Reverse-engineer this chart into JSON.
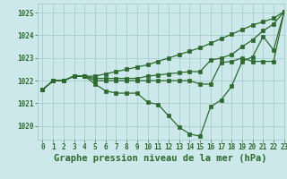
{
  "background_color": "#cde8ea",
  "grid_color": "#aacccc",
  "line_color": "#2d6a2d",
  "title": "Graphe pression niveau de la mer (hPa)",
  "xlim": [
    -0.5,
    23
  ],
  "ylim": [
    1019.4,
    1025.4
  ],
  "yticks": [
    1020,
    1021,
    1022,
    1023,
    1024,
    1025
  ],
  "xticks": [
    0,
    1,
    2,
    3,
    4,
    5,
    6,
    7,
    8,
    9,
    10,
    11,
    12,
    13,
    14,
    15,
    16,
    17,
    18,
    19,
    20,
    21,
    22,
    23
  ],
  "series": [
    [
      1021.6,
      1022.0,
      1022.0,
      1022.2,
      1022.2,
      1021.85,
      1021.55,
      1021.45,
      1021.45,
      1021.45,
      1021.05,
      1020.95,
      1020.45,
      1019.95,
      1019.65,
      1019.55,
      1020.85,
      1021.15,
      1021.75,
      1022.85,
      1023.05,
      1023.95,
      1023.35,
      1025.05
    ],
    [
      1021.6,
      1022.0,
      1022.0,
      1022.2,
      1022.2,
      1022.0,
      1022.0,
      1022.0,
      1022.0,
      1022.0,
      1022.0,
      1022.0,
      1022.0,
      1022.0,
      1022.0,
      1021.85,
      1021.85,
      1022.8,
      1022.85,
      1023.0,
      1022.85,
      1022.85,
      1022.85,
      1025.05
    ],
    [
      1021.6,
      1022.0,
      1022.0,
      1022.2,
      1022.2,
      1022.1,
      1022.1,
      1022.1,
      1022.1,
      1022.1,
      1022.2,
      1022.25,
      1022.3,
      1022.35,
      1022.4,
      1022.4,
      1022.9,
      1023.0,
      1023.15,
      1023.5,
      1023.8,
      1024.2,
      1024.5,
      1025.05
    ],
    [
      1021.6,
      1022.0,
      1022.0,
      1022.2,
      1022.2,
      1022.2,
      1022.3,
      1022.4,
      1022.5,
      1022.6,
      1022.7,
      1022.85,
      1023.0,
      1023.15,
      1023.3,
      1023.45,
      1023.65,
      1023.85,
      1024.05,
      1024.25,
      1024.45,
      1024.6,
      1024.75,
      1025.05
    ]
  ],
  "marker_size": 2.5,
  "line_width": 0.9,
  "title_fontsize": 7.5,
  "tick_fontsize": 5.5
}
